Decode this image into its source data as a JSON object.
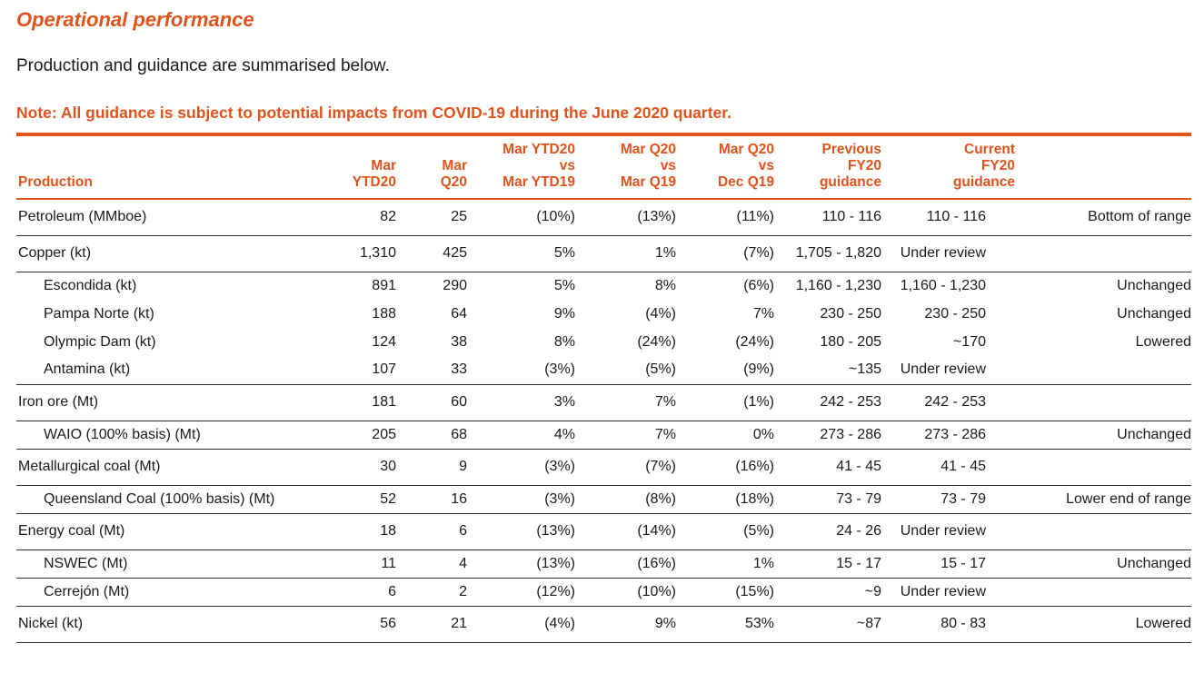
{
  "page": {
    "title": "Operational performance",
    "subtitle": "Production and guidance are summarised below.",
    "note": "Note: All guidance is subject to potential impacts from COVID-19 during the June 2020 quarter."
  },
  "colors": {
    "accent_orange": "#e0531c",
    "row_rule": "#2b2b2b",
    "body_text": "#1a1a1a"
  },
  "table": {
    "columns": [
      {
        "key": "name",
        "label": "Production",
        "align": "left"
      },
      {
        "key": "mar_ytd20",
        "label": "Mar\nYTD20",
        "align": "right"
      },
      {
        "key": "mar_q20",
        "label": "Mar\nQ20",
        "align": "right"
      },
      {
        "key": "mar_ytd20_vs_mar_ytd19",
        "label": "Mar YTD20\nvs\nMar YTD19",
        "align": "right"
      },
      {
        "key": "mar_q20_vs_mar_q19",
        "label": "Mar Q20\nvs\nMar Q19",
        "align": "right"
      },
      {
        "key": "mar_q20_vs_dec_q19",
        "label": "Mar Q20\nvs\nDec Q19",
        "align": "right"
      },
      {
        "key": "previous_fy20_guidance",
        "label": "Previous\nFY20\nguidance",
        "align": "right"
      },
      {
        "key": "current_fy20_guidance",
        "label": "Current\nFY20\nguidance",
        "align": "right"
      },
      {
        "key": "guidance_note",
        "label": "",
        "align": "right"
      }
    ],
    "rows": [
      {
        "name": "Petroleum (MMboe)",
        "indent": false,
        "rule": true,
        "cells": [
          "82",
          "25",
          "(10%)",
          "(13%)",
          "(11%)",
          "110 - 116",
          "110 - 116",
          "Bottom of range"
        ]
      },
      {
        "name": "Copper (kt)",
        "indent": false,
        "rule": true,
        "cells": [
          "1,310",
          "425",
          "5%",
          "1%",
          "(7%)",
          "1,705 - 1,820",
          "Under review",
          ""
        ]
      },
      {
        "name": "Escondida (kt)",
        "indent": true,
        "rule": false,
        "cells": [
          "891",
          "290",
          "5%",
          "8%",
          "(6%)",
          "1,160 - 1,230",
          "1,160 - 1,230",
          "Unchanged"
        ]
      },
      {
        "name": "Pampa Norte (kt)",
        "indent": true,
        "rule": false,
        "cells": [
          "188",
          "64",
          "9%",
          "(4%)",
          "7%",
          "230 - 250",
          "230 - 250",
          "Unchanged"
        ]
      },
      {
        "name": "Olympic Dam (kt)",
        "indent": true,
        "rule": false,
        "cells": [
          "124",
          "38",
          "8%",
          "(24%)",
          "(24%)",
          "180 - 205",
          "~170",
          "Lowered"
        ]
      },
      {
        "name": "Antamina (kt)",
        "indent": true,
        "rule": true,
        "cells": [
          "107",
          "33",
          "(3%)",
          "(5%)",
          "(9%)",
          "~135",
          "Under review",
          ""
        ]
      },
      {
        "name": "Iron ore (Mt)",
        "indent": false,
        "rule": true,
        "cells": [
          "181",
          "60",
          "3%",
          "7%",
          "(1%)",
          "242 - 253",
          "242 - 253",
          ""
        ]
      },
      {
        "name": "WAIO (100% basis) (Mt)",
        "indent": true,
        "rule": true,
        "cells": [
          "205",
          "68",
          "4%",
          "7%",
          "0%",
          "273 - 286",
          "273 - 286",
          "Unchanged"
        ]
      },
      {
        "name": "Metallurgical coal (Mt)",
        "indent": false,
        "rule": true,
        "cells": [
          "30",
          "9",
          "(3%)",
          "(7%)",
          "(16%)",
          "41 - 45",
          "41 - 45",
          ""
        ]
      },
      {
        "name": "Queensland Coal (100% basis) (Mt)",
        "indent": true,
        "rule": true,
        "cells": [
          "52",
          "16",
          "(3%)",
          "(8%)",
          "(18%)",
          "73 - 79",
          "73 - 79",
          "Lower end of range"
        ]
      },
      {
        "name": "Energy coal (Mt)",
        "indent": false,
        "rule": true,
        "cells": [
          "18",
          "6",
          "(13%)",
          "(14%)",
          "(5%)",
          "24 - 26",
          "Under review",
          ""
        ]
      },
      {
        "name": "NSWEC (Mt)",
        "indent": true,
        "rule": true,
        "cells": [
          "11",
          "4",
          "(13%)",
          "(16%)",
          "1%",
          "15 - 17",
          "15 - 17",
          "Unchanged"
        ]
      },
      {
        "name": "Cerrejón (Mt)",
        "indent": true,
        "rule": true,
        "cells": [
          "6",
          "2",
          "(12%)",
          "(10%)",
          "(15%)",
          "~9",
          "Under review",
          ""
        ]
      },
      {
        "name": "Nickel (kt)",
        "indent": false,
        "rule": true,
        "cells": [
          "56",
          "21",
          "(4%)",
          "9%",
          "53%",
          "~87",
          "80 - 83",
          "Lowered"
        ]
      }
    ]
  }
}
